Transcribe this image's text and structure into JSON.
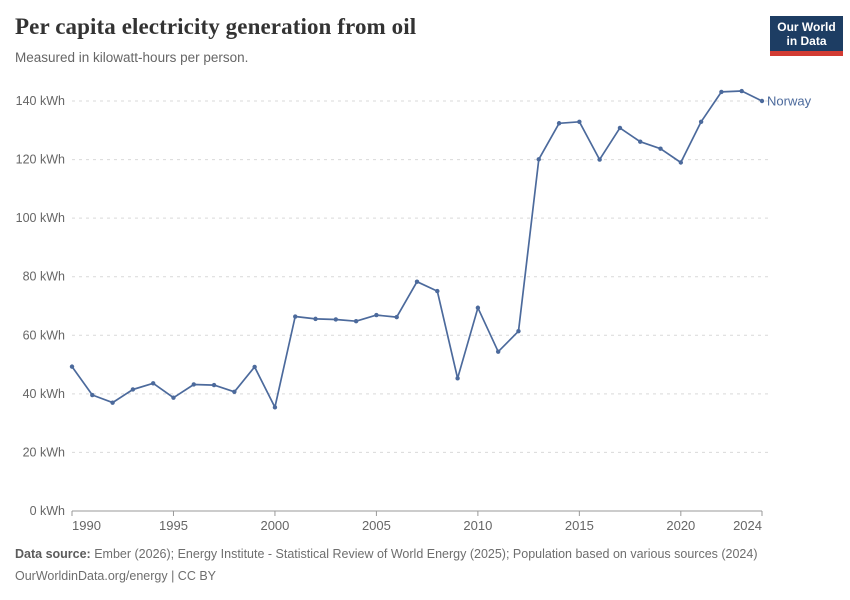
{
  "header": {
    "title": "Per capita electricity generation from oil",
    "subtitle": "Measured in kilowatt-hours per person.",
    "logo": {
      "line1": "Our World",
      "line2": "in Data"
    }
  },
  "chart_data": {
    "type": "line",
    "title": "Per capita electricity generation from oil",
    "subtitle": "Measured in kilowatt-hours per person.",
    "x": [
      1990,
      1991,
      1992,
      1993,
      1994,
      1995,
      1996,
      1997,
      1998,
      1999,
      2000,
      2001,
      2002,
      2003,
      2004,
      2005,
      2006,
      2007,
      2008,
      2009,
      2010,
      2011,
      2012,
      2013,
      2014,
      2015,
      2016,
      2017,
      2018,
      2019,
      2020,
      2021,
      2022,
      2023,
      2024
    ],
    "series": [
      {
        "name": "Norway",
        "color": "#4C6A9C",
        "values": [
          49.3,
          39.6,
          37,
          41.5,
          43.6,
          38.7,
          43.2,
          43,
          40.7,
          49.2,
          35.4,
          66.4,
          65.6,
          65.4,
          64.8,
          66.9,
          66.2,
          78.3,
          75.1,
          45.3,
          69.4,
          54.4,
          61.4,
          120.1,
          132.4,
          132.9,
          120,
          130.8,
          126.1,
          123.7,
          119,
          132.9,
          143.1,
          143.4,
          140
        ]
      }
    ],
    "xlabel": "",
    "ylabel": "kilowatt-hours per person",
    "xlim": [
      1990,
      2024
    ],
    "ylim": [
      0,
      140
    ],
    "x_ticks": [
      1990,
      1995,
      2000,
      2005,
      2010,
      2015,
      2020,
      2024
    ],
    "y_ticks": [
      0,
      20,
      40,
      60,
      80,
      100,
      120,
      140
    ],
    "y_tick_suffix": " kWh",
    "grid": "horizontal-dashed",
    "legend_position": "line-end-label",
    "end_label": "Norway"
  },
  "footer": {
    "source_label": "Data source:",
    "source_text": " Ember (2026); Energy Institute - Statistical Review of World Energy (2025); Population based on various sources (2024)",
    "url_line": "OurWorldinData.org/energy | CC BY"
  },
  "colors": {
    "line": "#4C6A9C",
    "grid": "#d9d9d9",
    "axis": "#999999",
    "tick_text": "#666666",
    "logo_bg": "#1d3d63",
    "logo_red": "#d23b33"
  }
}
